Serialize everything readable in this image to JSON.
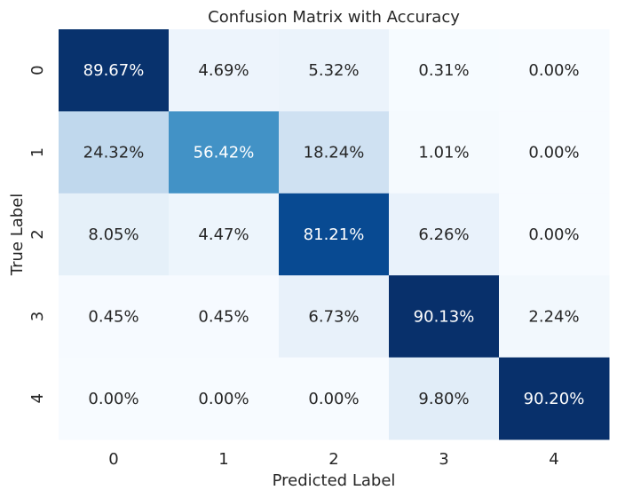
{
  "chart_data": {
    "type": "heatmap",
    "title": "Confusion Matrix with Accuracy",
    "xlabel": "Predicted Label",
    "ylabel": "True Label",
    "x_categories": [
      "0",
      "1",
      "2",
      "3",
      "4"
    ],
    "y_categories": [
      "0",
      "1",
      "2",
      "3",
      "4"
    ],
    "value_format": "percent",
    "colormap": "Blues",
    "color_range": [
      0,
      90.2
    ],
    "values": [
      [
        89.67,
        4.69,
        5.32,
        0.31,
        0.0
      ],
      [
        24.32,
        56.42,
        18.24,
        1.01,
        0.0
      ],
      [
        8.05,
        4.47,
        81.21,
        6.26,
        0.0
      ],
      [
        0.45,
        0.45,
        6.73,
        90.13,
        2.24
      ],
      [
        0.0,
        0.0,
        0.0,
        9.8,
        90.2
      ]
    ],
    "cell_labels": [
      [
        "89.67%",
        "4.69%",
        "5.32%",
        "0.31%",
        "0.00%"
      ],
      [
        "24.32%",
        "56.42%",
        "18.24%",
        "1.01%",
        "0.00%"
      ],
      [
        "8.05%",
        "4.47%",
        "81.21%",
        "6.26%",
        "0.00%"
      ],
      [
        "0.45%",
        "0.45%",
        "6.73%",
        "90.13%",
        "2.24%"
      ],
      [
        "0.00%",
        "0.00%",
        "0.00%",
        "9.80%",
        "90.20%"
      ]
    ],
    "colorbar": false,
    "grid": false
  }
}
